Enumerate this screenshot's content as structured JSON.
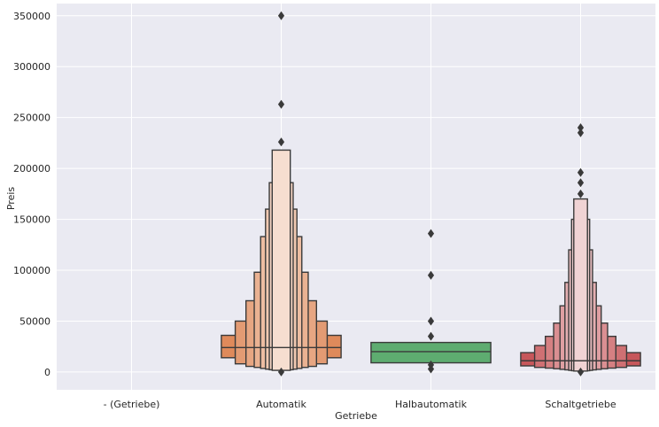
{
  "chart_data": {
    "type": "boxen",
    "xlabel": "Getriebe",
    "ylabel": "Preis",
    "categories": [
      "- (Getriebe)",
      "Automatik",
      "Halbautomatik",
      "Schaltgetriebe"
    ],
    "ylim": [
      -17500,
      362000
    ],
    "yticks": [
      0,
      50000,
      100000,
      150000,
      200000,
      250000,
      300000,
      350000
    ],
    "grid": true,
    "background": "#eaeaf2",
    "grid_color": "#ffffff",
    "edge_color": "#3a3a3a",
    "series": [
      {
        "category": "- (Getriebe)",
        "color": null,
        "boxes": [],
        "median": null,
        "outliers": []
      },
      {
        "category": "Automatik",
        "color": "#dd8452",
        "median": 24000,
        "boxes": [
          {
            "low": 14000,
            "high": 36000
          },
          {
            "low": 8000,
            "high": 50000
          },
          {
            "low": 5500,
            "high": 70000
          },
          {
            "low": 4500,
            "high": 98000
          },
          {
            "low": 3500,
            "high": 133000
          },
          {
            "low": 2800,
            "high": 160000
          },
          {
            "low": 2200,
            "high": 186000
          },
          {
            "low": 1600,
            "high": 218000
          }
        ],
        "outliers": [
          350000,
          263000,
          226000,
          0
        ]
      },
      {
        "category": "Halbautomatik",
        "color": "#55a868",
        "median": 20000,
        "boxes": [
          {
            "low": 9000,
            "high": 29000
          }
        ],
        "outliers": [
          136000,
          95000,
          50000,
          35000,
          7000,
          3000
        ]
      },
      {
        "category": "Schaltgetriebe",
        "color": "#c44e52",
        "median": 11000,
        "boxes": [
          {
            "low": 6000,
            "high": 19000
          },
          {
            "low": 4500,
            "high": 26000
          },
          {
            "low": 3800,
            "high": 35000
          },
          {
            "low": 3200,
            "high": 48000
          },
          {
            "low": 2600,
            "high": 65000
          },
          {
            "low": 2100,
            "high": 88000
          },
          {
            "low": 1600,
            "high": 120000
          },
          {
            "low": 1200,
            "high": 150000
          },
          {
            "low": 900,
            "high": 170000
          }
        ],
        "outliers": [
          240000,
          235000,
          196000,
          186000,
          175000,
          0
        ]
      }
    ]
  }
}
